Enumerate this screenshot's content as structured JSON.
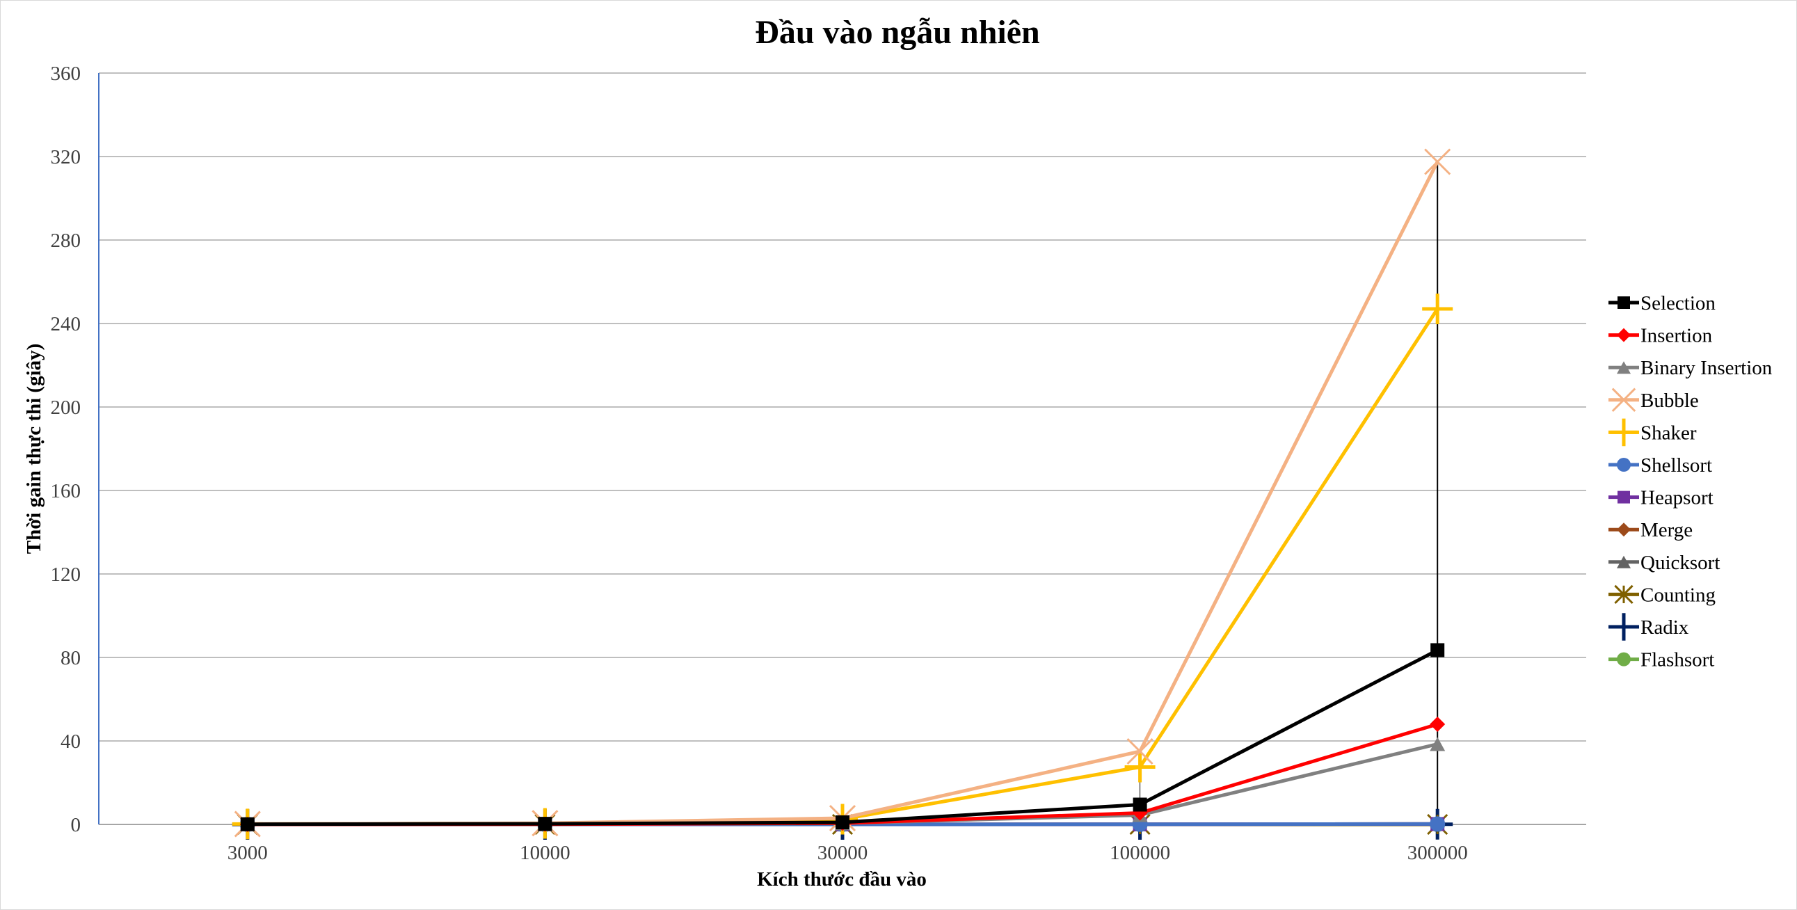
{
  "chart_data": {
    "type": "line",
    "title": "Đầu vào ngẫu nhiên",
    "xlabel": "Kích thước đầu vào",
    "ylabel": "Thời gain thực thi (giây)",
    "categories": [
      "3000",
      "10000",
      "30000",
      "100000",
      "300000"
    ],
    "ylim": [
      0,
      360
    ],
    "yticks": [
      "0",
      "40",
      "80",
      "120",
      "160",
      "200",
      "240",
      "280",
      "320",
      "360"
    ],
    "grid": true,
    "legend_position": "right",
    "series": [
      {
        "name": "Selection",
        "color": "#000000",
        "marker": "square",
        "values": [
          0.1,
          0.3,
          1.0,
          9.5,
          83.5
        ]
      },
      {
        "name": "Insertion",
        "color": "#ff0000",
        "marker": "diamond",
        "values": [
          0.02,
          0.1,
          0.6,
          5.5,
          48.0
        ]
      },
      {
        "name": "Binary Insertion",
        "color": "#808080",
        "marker": "triangle",
        "values": [
          0.02,
          0.1,
          0.5,
          4.5,
          38.5
        ]
      },
      {
        "name": "Bubble",
        "color": "#f4b183",
        "marker": "x",
        "values": [
          0.2,
          0.6,
          3.0,
          35.0,
          317.5
        ]
      },
      {
        "name": "Shaker",
        "color": "#ffc000",
        "marker": "plus",
        "values": [
          0.2,
          0.5,
          2.5,
          27.5,
          247.0
        ]
      },
      {
        "name": "Shellsort",
        "color": "#4472c4",
        "marker": "circle",
        "values": [
          0,
          0,
          0,
          0.1,
          0.2
        ]
      },
      {
        "name": "Heapsort",
        "color": "#7030a0",
        "marker": "square",
        "values": [
          0,
          0,
          0,
          0.1,
          0.2
        ]
      },
      {
        "name": "Merge",
        "color": "#9c4a1a",
        "marker": "diamond",
        "values": [
          0,
          0,
          0,
          0.1,
          0.2
        ]
      },
      {
        "name": "Quicksort",
        "color": "#636363",
        "marker": "triangle",
        "values": [
          0,
          0,
          0,
          0.1,
          0.2
        ]
      },
      {
        "name": "Counting",
        "color": "#7f6000",
        "marker": "asterisk",
        "values": [
          0,
          0,
          0,
          0,
          0
        ]
      },
      {
        "name": "Radix",
        "color": "#002060",
        "marker": "plus",
        "values": [
          0,
          0,
          0,
          0,
          0.1
        ]
      },
      {
        "name": "Flashsort",
        "color": "#70ad47",
        "marker": "circle",
        "values": [
          0,
          0,
          0,
          0,
          0
        ]
      }
    ]
  }
}
